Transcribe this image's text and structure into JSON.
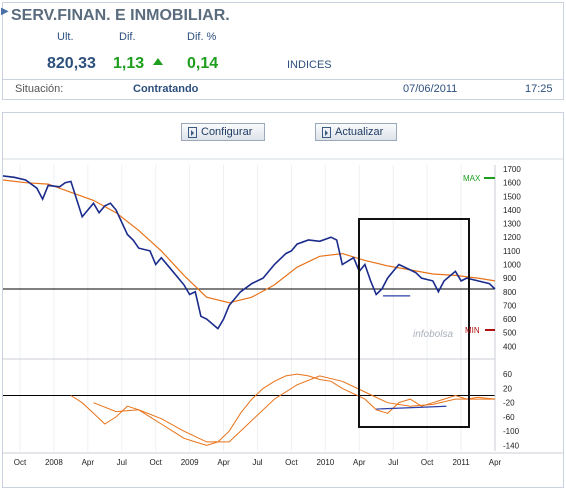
{
  "quote": {
    "title": "SERV.FINAN. E INMOBILIAR.",
    "headers": {
      "last": "Ult.",
      "diff": "Dif.",
      "diff_pct": "Dif. %"
    },
    "values": {
      "last": "820,33",
      "diff": "1,13",
      "diff_pct": "0,14"
    },
    "market": "INDICES",
    "status_label": "Situación:",
    "status_value": "Contratando",
    "date": "07/06/2011",
    "time": "17:25",
    "colors": {
      "title": "#5a6c7d",
      "header": "#2c4f7c",
      "positive": "#1e9e1e"
    }
  },
  "toolbar": {
    "configure_label": "Configurar",
    "refresh_label": "Actualizar"
  },
  "chart_data": [
    {
      "type": "line",
      "panel": "price",
      "x_ticks": [
        "Oct",
        "2008",
        "Apr",
        "Jul",
        "Oct",
        "2009",
        "Apr",
        "Jul",
        "Oct",
        "2010",
        "Apr",
        "Jul",
        "Oct",
        "2011",
        "Apr"
      ],
      "y_ticks": [
        1700,
        1600,
        1500,
        1400,
        1300,
        1200,
        1100,
        1000,
        900,
        800,
        700,
        600,
        500,
        400
      ],
      "ylim": [
        380,
        1730
      ],
      "max_label": "MAX",
      "min_label": "MIN",
      "watermark": "infobolsa",
      "horizontal_line": 820,
      "trend_line": [
        [
          33.6,
          770
        ],
        [
          36.0,
          770
        ]
      ],
      "series": [
        {
          "color": "#1a2b8c",
          "x": [
            0,
            1,
            2,
            3,
            3.5,
            4,
            5,
            5.5,
            6,
            7,
            8,
            8.5,
            9,
            9.5,
            10,
            11,
            11.5,
            12,
            13,
            13.5,
            14,
            15,
            16,
            16.5,
            17,
            17.5,
            18,
            19,
            19.5,
            20,
            21,
            22,
            23,
            24,
            25,
            25.5,
            26,
            27,
            28,
            29,
            29.5,
            30,
            31,
            31.5,
            32,
            32.5,
            33,
            33.5,
            34,
            34.5,
            35,
            36,
            36.5,
            37,
            38,
            38.5,
            39,
            40,
            40.5,
            41,
            42,
            43,
            43.5
          ],
          "values": [
            1650,
            1640,
            1620,
            1560,
            1480,
            1580,
            1570,
            1600,
            1610,
            1350,
            1450,
            1380,
            1430,
            1450,
            1400,
            1220,
            1180,
            1120,
            1100,
            1000,
            1050,
            950,
            850,
            780,
            800,
            620,
            600,
            530,
            600,
            700,
            800,
            860,
            900,
            1000,
            1080,
            1100,
            1150,
            1180,
            1170,
            1200,
            1180,
            1000,
            1050,
            950,
            1000,
            880,
            780,
            820,
            900,
            950,
            1000,
            960,
            940,
            900,
            880,
            800,
            880,
            950,
            880,
            900,
            880,
            860,
            820
          ]
        },
        {
          "color": "#e8731a",
          "x": [
            0,
            2,
            4,
            6,
            8,
            10,
            12,
            14,
            16,
            18,
            20,
            22,
            24,
            26,
            28,
            30,
            32,
            34,
            36,
            38,
            40,
            42,
            43.5
          ],
          "values": [
            1620,
            1600,
            1590,
            1530,
            1470,
            1380,
            1250,
            1100,
            920,
            760,
            720,
            760,
            850,
            980,
            1060,
            1080,
            1030,
            990,
            960,
            930,
            920,
            900,
            880
          ]
        }
      ]
    },
    {
      "type": "line",
      "panel": "oscillator",
      "y_ticks": [
        60,
        20,
        -20,
        -60,
        -100,
        -140
      ],
      "ylim": [
        -150,
        80
      ],
      "zero_line": 0,
      "trend_line": [
        [
          33.0,
          -38
        ],
        [
          39.2,
          -30
        ]
      ],
      "series": [
        {
          "color": "#e8731a",
          "x": [
            6,
            7,
            8,
            9,
            10,
            11,
            12,
            13,
            14,
            15,
            16,
            17,
            18,
            19,
            20,
            21,
            22,
            23,
            24,
            25,
            26,
            27,
            28,
            29,
            30,
            31,
            32,
            33,
            34,
            35,
            36,
            37,
            38,
            39,
            40,
            41,
            42,
            43.5
          ],
          "values": [
            0,
            -20,
            -50,
            -80,
            -60,
            -30,
            -40,
            -60,
            -80,
            -100,
            -120,
            -130,
            -140,
            -130,
            -100,
            -50,
            -10,
            20,
            40,
            55,
            60,
            55,
            45,
            40,
            20,
            5,
            -10,
            -40,
            -50,
            -20,
            -10,
            -30,
            -20,
            -10,
            0,
            -10,
            -5,
            -10
          ]
        },
        {
          "color": "#e8731a",
          "x": [
            8,
            10,
            12,
            14,
            16,
            18,
            20,
            22,
            24,
            26,
            28,
            30,
            32,
            34,
            36,
            38,
            40,
            42,
            43.5
          ],
          "values": [
            -20,
            -45,
            -40,
            -65,
            -100,
            -130,
            -130,
            -70,
            -10,
            30,
            55,
            40,
            10,
            -20,
            -30,
            -25,
            -10,
            -10,
            -10
          ]
        }
      ]
    }
  ]
}
